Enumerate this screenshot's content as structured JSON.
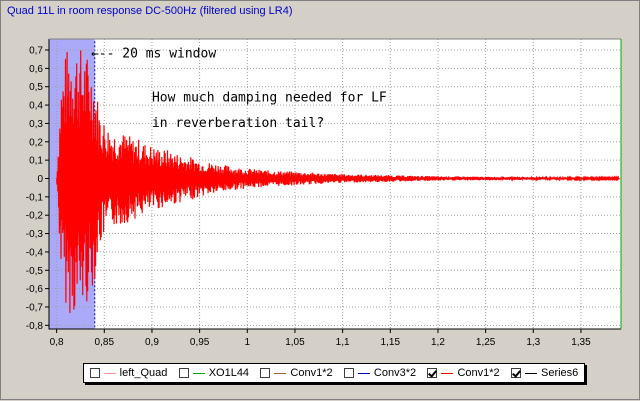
{
  "chart_data": {
    "type": "line",
    "title": "Quad 11L in room response DC-500Hz (filtered using LR4)",
    "xlim": [
      0.792,
      1.392
    ],
    "ylim": [
      -0.82,
      0.76
    ],
    "x_ticks": [
      0.8,
      0.85,
      0.9,
      0.95,
      1.0,
      1.05,
      1.1,
      1.15,
      1.2,
      1.25,
      1.3,
      1.35
    ],
    "x_tick_labels": [
      "0,8",
      "0,85",
      "0,9",
      "0,95",
      "1",
      "1,05",
      "1,1",
      "1,15",
      "1,2",
      "1,25",
      "1,3",
      "1,35"
    ],
    "y_ticks": [
      0.7,
      0.6,
      0.5,
      0.4,
      0.3,
      0.2,
      0.1,
      0,
      -0.1,
      -0.2,
      -0.3,
      -0.4,
      -0.5,
      -0.6,
      -0.7,
      -0.8
    ],
    "y_tick_labels": [
      "0,7",
      "0,6",
      "0,5",
      "0,4",
      "0,3",
      "0,2",
      "0,1",
      "0",
      "-0,1",
      "-0,2",
      "-0,3",
      "-0,4",
      "-0,5",
      "-0,6",
      "-0,7",
      "-0,8"
    ],
    "grid": true,
    "highlight_window": {
      "x": [
        0.792,
        0.84
      ],
      "color": "#aaaaf8"
    },
    "annotations": [
      {
        "text": "←-- 20 ms window",
        "x": 0.836,
        "y": 0.66
      },
      {
        "text": "How much damping needed for LF",
        "x": 0.9,
        "y": 0.42
      },
      {
        "text": "in reverberation tail?",
        "x": 0.9,
        "y": 0.28
      }
    ],
    "series": [
      {
        "name": "Conv1*2",
        "color": "#ff0000",
        "x": [
          0.8,
          0.805,
          0.81,
          0.815,
          0.82,
          0.825,
          0.83,
          0.835,
          0.84,
          0.845,
          0.85,
          0.855,
          0.86,
          0.865,
          0.87,
          0.875,
          0.88,
          0.885,
          0.89,
          0.895,
          0.9,
          0.905,
          0.91,
          0.915,
          0.92,
          0.925,
          0.93,
          0.935,
          0.94,
          0.945,
          0.95,
          0.96,
          0.97,
          0.98,
          0.99,
          1.0,
          1.02,
          1.04,
          1.06,
          1.08,
          1.1,
          1.15,
          1.2,
          1.25,
          1.3,
          1.35,
          1.39
        ],
        "envelope": [
          0.0,
          0.55,
          0.7,
          0.75,
          0.75,
          0.72,
          0.7,
          0.65,
          0.55,
          0.38,
          0.32,
          0.28,
          0.26,
          0.27,
          0.25,
          0.24,
          0.22,
          0.22,
          0.2,
          0.19,
          0.18,
          0.17,
          0.16,
          0.16,
          0.15,
          0.14,
          0.13,
          0.12,
          0.12,
          0.11,
          0.1,
          0.09,
          0.08,
          0.07,
          0.06,
          0.055,
          0.045,
          0.04,
          0.035,
          0.028,
          0.024,
          0.018,
          0.012,
          0.01,
          0.008,
          0.006,
          0.005
        ]
      }
    ]
  },
  "legend": {
    "items": [
      {
        "label": "left_Quad",
        "color": "#ff9999",
        "checked": false
      },
      {
        "label": "XO1L44",
        "color": "#00aa00",
        "checked": false
      },
      {
        "label": "Conv1*2",
        "color": "#996633",
        "checked": false
      },
      {
        "label": "Conv3*2",
        "color": "#0000cc",
        "checked": false
      },
      {
        "label": "Conv1*2",
        "color": "#ff0000",
        "checked": true
      },
      {
        "label": "Series6",
        "color": "#000000",
        "checked": true
      }
    ]
  }
}
